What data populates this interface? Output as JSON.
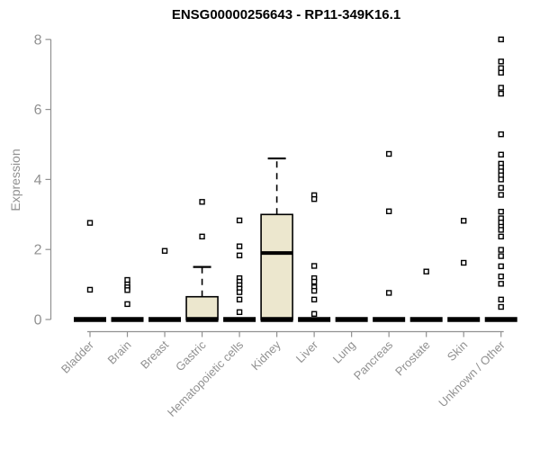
{
  "header": {
    "title": "ENSG00000256643 - RP11-349K16.1"
  },
  "chart_data": {
    "type": "boxplot",
    "title": "ENSG00000256643 - RP11-349K16.1",
    "xlabel": "",
    "ylabel": "Expression",
    "ylim": [
      0,
      8
    ],
    "yticks": [
      0,
      2,
      4,
      6,
      8
    ],
    "grid": false,
    "legend": false,
    "categories": [
      "Bladder",
      "Brain",
      "Breast",
      "Gastric",
      "Hematopoietic cells",
      "Kidney",
      "Liver",
      "Lung",
      "Pancreas",
      "Prostate",
      "Skin",
      "Unknown / Other"
    ],
    "series": [
      {
        "category": "Bladder",
        "q1": 0,
        "median": 0,
        "q3": 0,
        "whisker_low": 0,
        "whisker_high": 0,
        "outliers": [
          2.76,
          0.85
        ]
      },
      {
        "category": "Brain",
        "q1": 0,
        "median": 0,
        "q3": 0,
        "whisker_low": 0,
        "whisker_high": 0,
        "outliers": [
          1.13,
          1.0,
          0.92,
          0.84,
          0.44
        ]
      },
      {
        "category": "Breast",
        "q1": 0,
        "median": 0,
        "q3": 0,
        "whisker_low": 0,
        "whisker_high": 0,
        "outliers": [
          1.96
        ]
      },
      {
        "category": "Gastric",
        "q1": 0,
        "median": 0,
        "q3": 0.65,
        "whisker_low": 0,
        "whisker_high": 1.5,
        "outliers": [
          3.36,
          2.37
        ]
      },
      {
        "category": "Hematopoietic cells",
        "q1": 0,
        "median": 0,
        "q3": 0,
        "whisker_low": 0,
        "whisker_high": 0,
        "outliers": [
          2.83,
          2.09,
          1.83,
          1.18,
          1.08,
          0.98,
          0.88,
          0.78,
          0.57,
          0.21
        ]
      },
      {
        "category": "Kidney",
        "q1": 0,
        "median": 1.9,
        "q3": 3.0,
        "whisker_low": 0,
        "whisker_high": 4.6,
        "outliers": []
      },
      {
        "category": "Liver",
        "q1": 0,
        "median": 0,
        "q3": 0,
        "whisker_low": 0,
        "whisker_high": 0,
        "outliers": [
          3.55,
          3.44,
          1.53,
          1.18,
          1.08,
          0.92,
          0.82,
          0.57,
          0.16
        ]
      },
      {
        "category": "Lung",
        "q1": 0,
        "median": 0,
        "q3": 0,
        "whisker_low": 0,
        "whisker_high": 0,
        "outliers": []
      },
      {
        "category": "Pancreas",
        "q1": 0,
        "median": 0,
        "q3": 0,
        "whisker_low": 0,
        "whisker_high": 0,
        "outliers": [
          4.73,
          3.09,
          0.76
        ]
      },
      {
        "category": "Prostate",
        "q1": 0,
        "median": 0,
        "q3": 0,
        "whisker_low": 0,
        "whisker_high": 0,
        "outliers": [
          1.37
        ]
      },
      {
        "category": "Skin",
        "q1": 0,
        "median": 0,
        "q3": 0,
        "whisker_low": 0,
        "whisker_high": 0,
        "outliers": [
          2.82,
          1.62
        ]
      },
      {
        "category": "Unknown / Other",
        "q1": 0,
        "median": 0,
        "q3": 0,
        "whisker_low": 0,
        "whisker_high": 0,
        "outliers": [
          8.0,
          7.37,
          7.18,
          7.05,
          6.62,
          6.45,
          5.29,
          4.71,
          4.45,
          4.34,
          4.23,
          4.12,
          4.0,
          3.76,
          3.56,
          3.08,
          2.89,
          2.77,
          2.65,
          2.56,
          2.37,
          1.99,
          1.81,
          1.52,
          1.23,
          1.02,
          0.57,
          0.36
        ]
      }
    ],
    "colors": {
      "box_fill": "#ECE7CE",
      "box_stroke": "#000000",
      "axis": "#919191",
      "label": "#919191",
      "title": "#000000",
      "background": "#FFFFFF"
    }
  }
}
